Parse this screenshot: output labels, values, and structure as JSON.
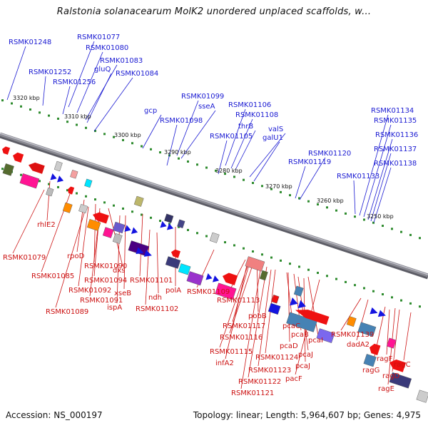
{
  "title": "Ralstonia solanacearum MolK2 unordered unplaced scaffolds, w...",
  "footer": {
    "accession": "Accession: NS_000197",
    "summary": "Topology: linear; Length: 5,964,607 bp; Genes: 4,975"
  },
  "colors": {
    "top_label": "#1a1ad2",
    "bottom_label": "#cc1111",
    "backbone": "#8a8a92",
    "tick": "#2e8b2e"
  },
  "coordinates": [
    {
      "text": "3320 kbp"
    },
    {
      "text": "3310 kbp"
    },
    {
      "text": "3300 kbp"
    },
    {
      "text": "3290 kbp"
    },
    {
      "text": "3280 kbp"
    },
    {
      "text": "3270 kbp"
    },
    {
      "text": "3260 kbp"
    },
    {
      "text": "3250 kbp"
    }
  ],
  "top_labels": [
    {
      "text": "RSMK01248"
    },
    {
      "text": "RSMK01077"
    },
    {
      "text": "RSMK01080"
    },
    {
      "text": "RSMK01083"
    },
    {
      "text": "RSMK01252"
    },
    {
      "text": "gluQ"
    },
    {
      "text": "RSMK01084"
    },
    {
      "text": "RSMK01256"
    },
    {
      "text": "RSMK01099"
    },
    {
      "text": "sseA"
    },
    {
      "text": "gcp"
    },
    {
      "text": "RSMK01098"
    },
    {
      "text": "RSMK01106"
    },
    {
      "text": "RSMK01108"
    },
    {
      "text": "thrB"
    },
    {
      "text": "valS"
    },
    {
      "text": "galU1"
    },
    {
      "text": "RSMK01105"
    },
    {
      "text": "RSMK01134"
    },
    {
      "text": "RSMK01135"
    },
    {
      "text": "RSMK01136"
    },
    {
      "text": "RSMK01137"
    },
    {
      "text": "RSMK01138"
    },
    {
      "text": "RSMK01120"
    },
    {
      "text": "RSMK01119"
    },
    {
      "text": "RSMK01133"
    }
  ],
  "bottom_labels": [
    {
      "text": "rhlE2"
    },
    {
      "text": "RSMK01079"
    },
    {
      "text": "rpoD"
    },
    {
      "text": "RSMK01085"
    },
    {
      "text": "RSMK01090"
    },
    {
      "text": "dxs"
    },
    {
      "text": "RSMK01094"
    },
    {
      "text": "RSMK01101"
    },
    {
      "text": "RSMK01092"
    },
    {
      "text": "xseB"
    },
    {
      "text": "RSMK01091"
    },
    {
      "text": "ispA"
    },
    {
      "text": "RSMK01089"
    },
    {
      "text": "ndh"
    },
    {
      "text": "polA"
    },
    {
      "text": "RSMK01102"
    },
    {
      "text": "RSMK01109"
    },
    {
      "text": "RSMK01113"
    },
    {
      "text": "pobB"
    },
    {
      "text": "RSMK01117"
    },
    {
      "text": "pcaC"
    },
    {
      "text": "RSMK01116"
    },
    {
      "text": "pcaB"
    },
    {
      "text": "pcaI"
    },
    {
      "text": "pcaD"
    },
    {
      "text": "RSMK01115"
    },
    {
      "text": "pcaJ"
    },
    {
      "text": "RSMK01124"
    },
    {
      "text": "infA2"
    },
    {
      "text": "pcaJ"
    },
    {
      "text": "RSMK01123"
    },
    {
      "text": "RSMK01122"
    },
    {
      "text": "pacF"
    },
    {
      "text": "RSMK01121"
    },
    {
      "text": "RSMK01139"
    },
    {
      "text": "dadA2"
    },
    {
      "text": "ragF"
    },
    {
      "text": "ragC"
    },
    {
      "text": "ragG"
    },
    {
      "text": "ragD"
    },
    {
      "text": "ragE"
    }
  ]
}
